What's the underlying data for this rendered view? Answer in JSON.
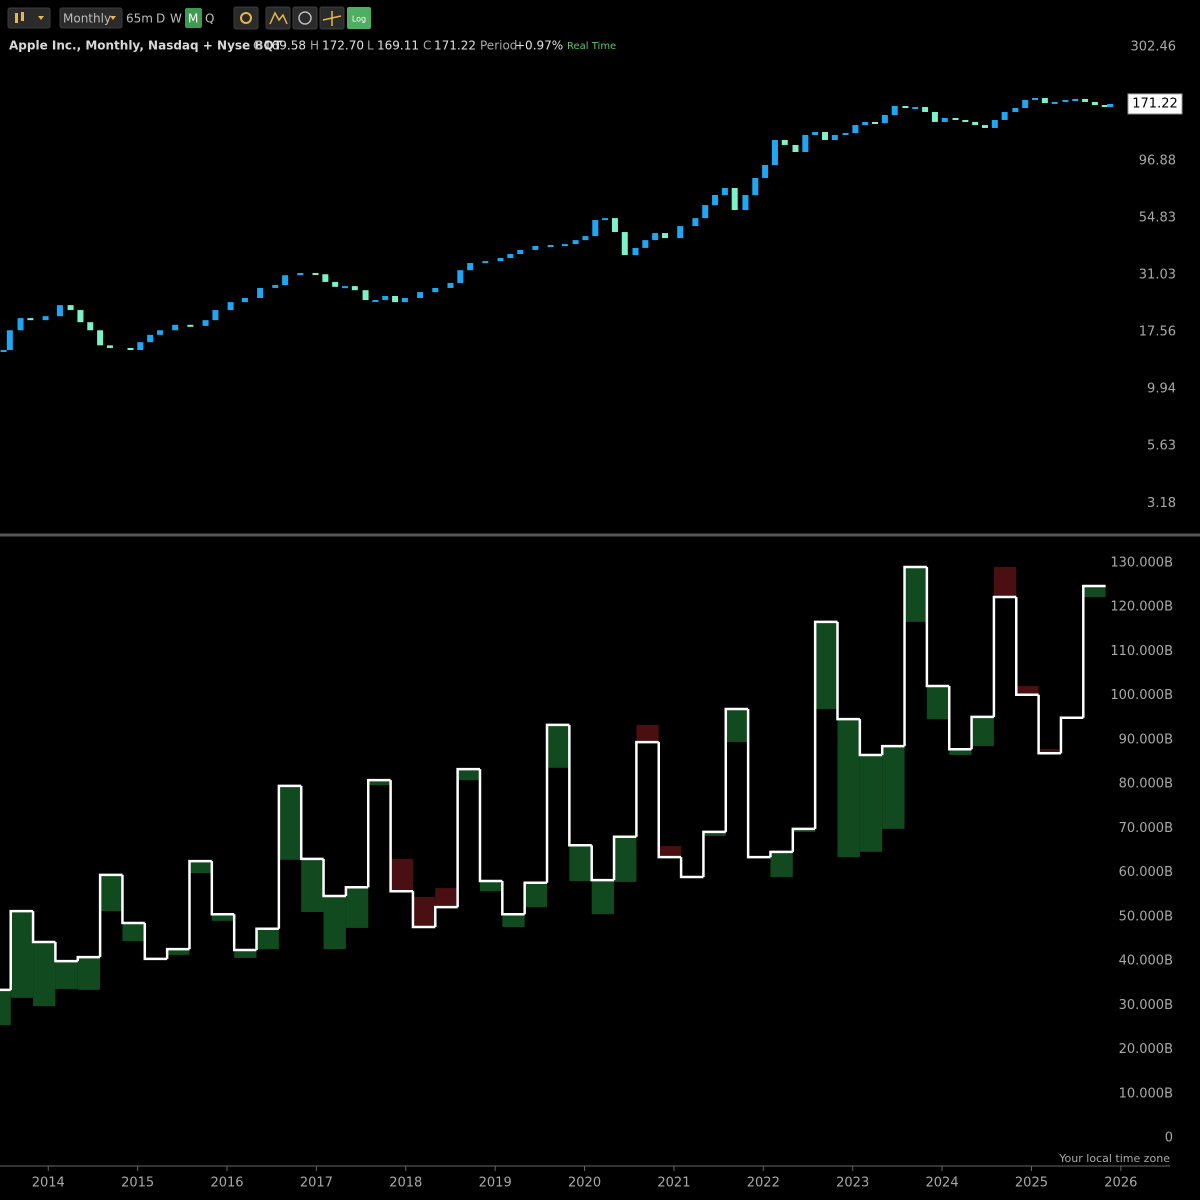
{
  "toolbar": {
    "interval": "Monthly",
    "buttons": [
      "65m",
      "D",
      "W",
      "M",
      "Q"
    ],
    "active": "M",
    "log_button": "Log"
  },
  "legend": {
    "title": "Apple Inc., Monthly, Nasdaq + Nyse BQT",
    "quote": [
      {
        "label": "O",
        "value": "169.58"
      },
      {
        "label": "H",
        "value": "172.70"
      },
      {
        "label": "L",
        "value": "169.11"
      },
      {
        "label": "C",
        "value": "171.22"
      },
      {
        "label": "Period",
        "value": "+0.97%"
      }
    ],
    "status": "Real Time"
  },
  "chart_data": [
    {
      "type": "candlestick",
      "log": true,
      "up_color": "#1ea7f5",
      "down_color": "#7df2c8",
      "x": [
        2013.5,
        2013.57,
        2013.69,
        2013.8,
        2013.97,
        2014.13,
        2014.25,
        2014.36,
        2014.47,
        2014.58,
        2014.69,
        2014.92,
        2015.03,
        2015.14,
        2015.25,
        2015.42,
        2015.59,
        2015.76,
        2015.87,
        2016.04,
        2016.2,
        2016.37,
        2016.54,
        2016.65,
        2016.82,
        2016.99,
        2017.1,
        2017.21,
        2017.32,
        2017.43,
        2017.55,
        2017.66,
        2017.77,
        2017.88,
        2017.99,
        2018.16,
        2018.33,
        2018.5,
        2018.61,
        2018.72,
        2018.89,
        2019.06,
        2019.17,
        2019.28,
        2019.45,
        2019.62,
        2019.78,
        2019.9,
        2020.01,
        2020.12,
        2020.23,
        2020.34,
        2020.45,
        2020.57,
        2020.68,
        2020.79,
        2020.9,
        2021.07,
        2021.24,
        2021.35,
        2021.46,
        2021.57,
        2021.68,
        2021.8,
        2021.91,
        2022.02,
        2022.13,
        2022.24,
        2022.36,
        2022.47,
        2022.58,
        2022.69,
        2022.8,
        2022.92,
        2023.03,
        2023.14,
        2023.25,
        2023.36,
        2023.47,
        2023.59,
        2023.7,
        2023.81,
        2023.92,
        2024.03,
        2024.15,
        2024.26,
        2024.37,
        2024.48,
        2024.59,
        2024.7,
        2024.82,
        2024.93,
        2025.04,
        2025.15,
        2025.26,
        2025.38,
        2025.49,
        2025.6,
        2025.71,
        2025.82,
        2025.88
      ],
      "close": [
        14.7,
        17.9,
        20.2,
        19.8,
        20.6,
        23.0,
        21.9,
        19.4,
        17.9,
        15.4,
        15.0,
        14.7,
        15.9,
        17.1,
        17.9,
        18.9,
        18.7,
        19.8,
        21.9,
        23.7,
        24.7,
        27.3,
        28.1,
        31.0,
        31.7,
        31.3,
        29.0,
        27.6,
        27.8,
        26.7,
        24.2,
        24.2,
        25.2,
        23.7,
        24.7,
        26.2,
        27.3,
        28.7,
        32.6,
        35.0,
        35.7,
        36.8,
        38.3,
        39.9,
        41.5,
        41.9,
        42.3,
        44.0,
        45.8,
        53.8,
        54.8,
        47.7,
        37.9,
        40.7,
        44.0,
        47.2,
        44.9,
        50.6,
        54.8,
        62.4,
        69.0,
        74.0,
        59.4,
        69.0,
        81.8,
        93.1,
        119.5,
        113.7,
        106.0,
        125.6,
        129.4,
        119.5,
        125.6,
        128.1,
        138.7,
        143.0,
        141.5,
        153.3,
        167.7,
        164.4,
        166.0,
        158.0,
        143.0,
        148.8,
        145.9,
        143.0,
        138.7,
        134.7,
        145.9,
        158.0,
        164.4,
        178.1,
        181.7,
        172.8,
        174.6,
        178.1,
        179.9,
        174.6,
        169.4,
        166.0,
        171.22
      ],
      "last_price": 171.22,
      "xlim": [
        2013.46,
        2026.55
      ],
      "ylim": [
        2.44,
        358
      ],
      "yticks": [
        302.46,
        96.88,
        54.83,
        31.03,
        17.56,
        9.94,
        5.63,
        3.18
      ]
    },
    {
      "type": "step-bars",
      "line_color": "#ffffff",
      "up_color": "#124a1f",
      "down_color": "#4a0f10",
      "x": [
        2013.33,
        2013.58,
        2013.83,
        2014.08,
        2014.33,
        2014.58,
        2014.83,
        2015.08,
        2015.33,
        2015.58,
        2015.83,
        2016.08,
        2016.33,
        2016.58,
        2016.83,
        2017.08,
        2017.33,
        2017.58,
        2017.83,
        2018.08,
        2018.33,
        2018.58,
        2018.83,
        2019.08,
        2019.33,
        2019.58,
        2019.83,
        2020.08,
        2020.33,
        2020.58,
        2020.83,
        2021.08,
        2021.33,
        2021.58,
        2021.83,
        2022.08,
        2022.33,
        2022.58,
        2022.83,
        2023.08,
        2023.33,
        2023.58,
        2023.83,
        2024.08,
        2024.33,
        2024.58,
        2024.83,
        2025.08,
        2025.33,
        2025.58
      ],
      "values": [
        33.5,
        51.3,
        44.3,
        40.0,
        40.9,
        59.5,
        48.6,
        40.5,
        42.7,
        62.6,
        50.6,
        42.5,
        47.3,
        79.6,
        63.1,
        54.7,
        56.7,
        80.9,
        55.8,
        47.7,
        52.2,
        83.4,
        58.1,
        50.6,
        57.7,
        93.4,
        66.2,
        58.3,
        68.1,
        89.5,
        63.5,
        59.0,
        69.2,
        97.0,
        63.5,
        64.7,
        69.9,
        116.7,
        94.7,
        86.6,
        88.6,
        129.1,
        102.2,
        87.9,
        95.2,
        122.3,
        100.2,
        87.0,
        95.0,
        124.8
      ],
      "prior": [
        25.5,
        31.7,
        29.8,
        33.7,
        33.5,
        51.3,
        44.5,
        40.5,
        41.4,
        59.9,
        49.1,
        40.7,
        42.7,
        62.9,
        51.1,
        42.7,
        47.5,
        79.8,
        63.1,
        54.5,
        56.5,
        80.9,
        55.8,
        47.7,
        52.2,
        83.7,
        58.1,
        50.6,
        57.9,
        93.4,
        66.0,
        59.0,
        68.3,
        89.5,
        63.5,
        59.0,
        69.2,
        97.0,
        63.5,
        64.7,
        69.9,
        116.7,
        94.7,
        86.6,
        88.6,
        129.1,
        102.2,
        87.9,
        95.2,
        122.3
      ],
      "xlim": [
        2013.46,
        2026.55
      ],
      "ylim": [
        0,
        130
      ],
      "xticks": [
        2014,
        2015,
        2016,
        2017,
        2018,
        2019,
        2020,
        2021,
        2022,
        2023,
        2024,
        2025,
        2026
      ],
      "yticks": [
        0,
        {
          "value": 10,
          "label": "10.000B"
        },
        {
          "value": 20,
          "label": "20.000B"
        },
        {
          "value": 30,
          "label": "30.000B"
        },
        {
          "value": 40,
          "label": "40.000B"
        },
        {
          "value": 50,
          "label": "50.000B"
        },
        {
          "value": 60,
          "label": "60.000B"
        },
        {
          "value": 70,
          "label": "70.000B"
        },
        {
          "value": 80,
          "label": "80.000B"
        },
        {
          "value": 90,
          "label": "90.000B"
        },
        {
          "value": 100,
          "label": "100.000B"
        },
        {
          "value": 110,
          "label": "110.000B"
        },
        {
          "value": 120,
          "label": "120.000B"
        },
        {
          "value": 130,
          "label": "130.000B"
        }
      ],
      "note": "Your local time zone"
    }
  ]
}
